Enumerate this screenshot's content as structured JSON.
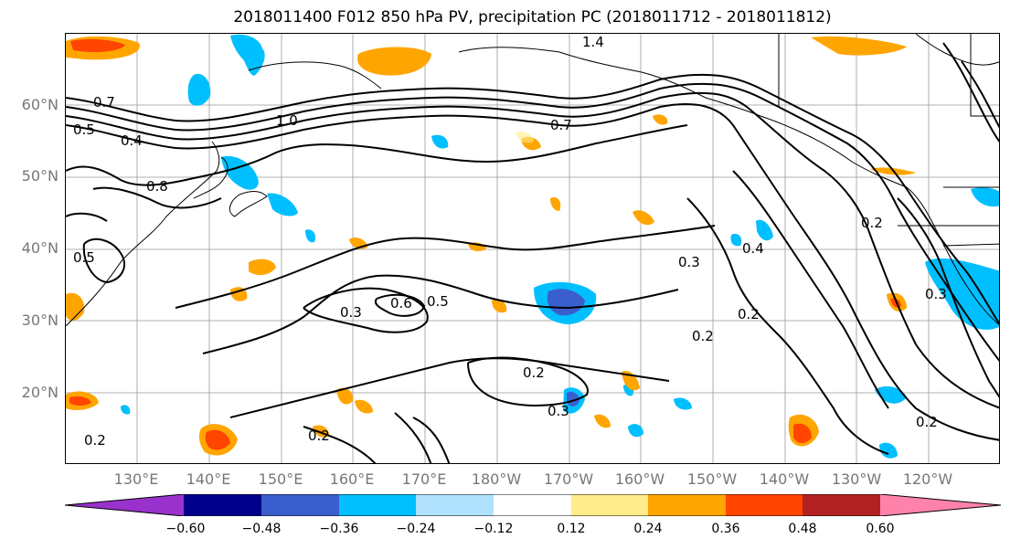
{
  "title": "2018011400 F012 850 hPa PV, precipitation PC (2018011712 - 2018011812)",
  "lat_labels": [
    "60°N",
    "50°N",
    "40°N",
    "30°N",
    "20°N"
  ],
  "lon_labels": [
    "130°E",
    "140°E",
    "150°E",
    "160°E",
    "170°E",
    "180°W",
    "170°W",
    "160°W",
    "150°W",
    "140°W",
    "130°W",
    "120°W"
  ],
  "colorbar": {
    "ticks": [
      "−0.60",
      "−0.48",
      "−0.36",
      "−0.24",
      "−0.12",
      "0.12",
      "0.24",
      "0.36",
      "0.48",
      "0.60"
    ],
    "colors": [
      "#9932cc",
      "#00008b",
      "#3a5fcd",
      "#00bfff",
      "#b0e2ff",
      "#ffffff",
      "#ffec8b",
      "#ffa500",
      "#ff4500",
      "#b22222",
      "#ff82ab"
    ]
  },
  "contour_labels": [
    "0.2",
    "0.3",
    "0.4",
    "0.5",
    "0.6",
    "0.7",
    "0.8",
    "1.0",
    "1.4"
  ],
  "map_extent": {
    "lon_min": "120°E",
    "lon_max": "110°W",
    "lat_min": "10°N",
    "lat_max": "70°N"
  },
  "fields": {
    "contours": "850 hPa PV",
    "shading": "precipitation PC"
  }
}
